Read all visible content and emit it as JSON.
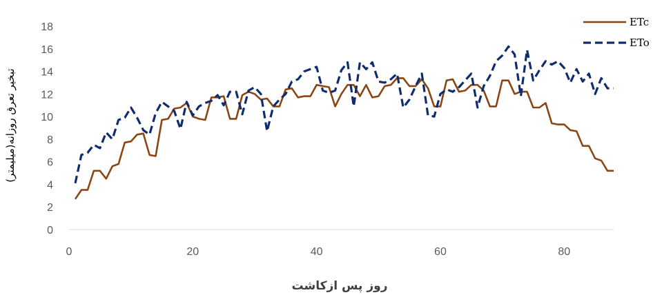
{
  "chart_data": {
    "type": "line",
    "xlabel": "روز پس ازکاشت",
    "ylabel": "تبخیر تعرق روزانه(میلیمتر)",
    "xlim": [
      0,
      88
    ],
    "ylim": [
      0,
      18
    ],
    "xticks": [
      0,
      20,
      40,
      60,
      80
    ],
    "yticks": [
      0,
      2,
      4,
      6,
      8,
      10,
      12,
      14,
      16,
      18
    ],
    "grid": false,
    "legend_position": "top-right",
    "series": [
      {
        "name": "ETc",
        "color": "#8B4513",
        "style": "solid",
        "x": [
          1,
          2,
          3,
          4,
          5,
          6,
          7,
          8,
          9,
          10,
          11,
          12,
          13,
          14,
          15,
          16,
          17,
          18,
          19,
          20,
          21,
          22,
          23,
          24,
          25,
          26,
          27,
          28,
          29,
          30,
          31,
          32,
          33,
          34,
          35,
          36,
          37,
          38,
          39,
          40,
          41,
          42,
          43,
          44,
          45,
          46,
          47,
          48,
          49,
          50,
          51,
          52,
          53,
          54,
          55,
          56,
          57,
          58,
          59,
          60,
          61,
          62,
          63,
          64,
          65,
          66,
          67,
          68,
          69,
          70,
          71,
          72,
          73,
          74,
          75,
          76,
          77,
          78,
          79,
          80,
          81,
          82,
          83,
          84,
          85,
          86,
          87,
          88
        ],
        "values": [
          2.7,
          3.5,
          3.5,
          5.2,
          5.2,
          4.5,
          5.6,
          5.8,
          7.7,
          7.8,
          8.4,
          8.5,
          6.6,
          6.5,
          9.7,
          9.8,
          10.7,
          10.8,
          11.2,
          10.0,
          9.8,
          9.7,
          11.7,
          11.7,
          11.8,
          9.8,
          9.8,
          11.9,
          12.2,
          12.0,
          11.5,
          11.6,
          10.9,
          10.9,
          12.4,
          12.5,
          11.7,
          11.8,
          11.8,
          12.8,
          12.7,
          12.6,
          10.9,
          12.0,
          12.8,
          12.8,
          11.8,
          12.8,
          11.7,
          11.8,
          12.7,
          12.8,
          13.4,
          13.4,
          12.7,
          12.7,
          13.3,
          12.5,
          10.9,
          10.9,
          13.2,
          13.3,
          12.2,
          12.3,
          12.8,
          12.8,
          12.3,
          10.9,
          10.9,
          13.2,
          13.2,
          12.0,
          12.2,
          12.2,
          10.8,
          10.8,
          11.2,
          9.4,
          9.3,
          9.3,
          8.8,
          8.7,
          7.4,
          7.4,
          6.3,
          6.1,
          5.2,
          5.2
        ]
      },
      {
        "name": "ETo",
        "color": "#0F2C6E",
        "style": "dashed",
        "x": [
          1,
          2,
          3,
          4,
          5,
          6,
          7,
          8,
          9,
          10,
          11,
          12,
          13,
          14,
          15,
          16,
          17,
          18,
          19,
          20,
          21,
          22,
          23,
          24,
          25,
          26,
          27,
          28,
          29,
          30,
          31,
          32,
          33,
          34,
          35,
          36,
          37,
          38,
          39,
          40,
          41,
          42,
          43,
          44,
          45,
          46,
          47,
          48,
          49,
          50,
          51,
          52,
          53,
          54,
          55,
          56,
          57,
          58,
          59,
          60,
          61,
          62,
          63,
          64,
          65,
          66,
          67,
          68,
          69,
          70,
          71,
          72,
          73,
          74,
          75,
          76,
          77,
          78,
          79,
          80,
          81,
          82,
          83,
          84,
          85,
          86,
          87,
          88
        ],
        "values": [
          4.1,
          6.6,
          6.8,
          7.5,
          7.2,
          8.6,
          8.0,
          9.7,
          9.9,
          10.8,
          9.9,
          8.8,
          8.4,
          10.3,
          11.3,
          10.9,
          10.5,
          8.9,
          11.3,
          10.1,
          10.9,
          11.2,
          11.4,
          11.9,
          11.0,
          12.2,
          12.2,
          10.2,
          12.3,
          12.6,
          12.0,
          8.7,
          10.9,
          11.5,
          12.0,
          13.1,
          13.3,
          14.0,
          14.2,
          14.4,
          12.3,
          12.1,
          12.3,
          14.1,
          14.8,
          10.9,
          14.8,
          14.2,
          14.8,
          13.1,
          13.0,
          13.3,
          13.8,
          10.8,
          11.5,
          12.7,
          13.8,
          10.1,
          10.0,
          12.0,
          12.4,
          12.2,
          12.6,
          13.2,
          13.8,
          10.8,
          12.7,
          13.6,
          14.9,
          15.4,
          16.2,
          15.5,
          11.8,
          15.9,
          13.2,
          14.1,
          14.9,
          14.6,
          14.9,
          14.3,
          13.0,
          14.2,
          13.1,
          13.8,
          12.0,
          13.4,
          12.5,
          12.5
        ]
      }
    ]
  }
}
